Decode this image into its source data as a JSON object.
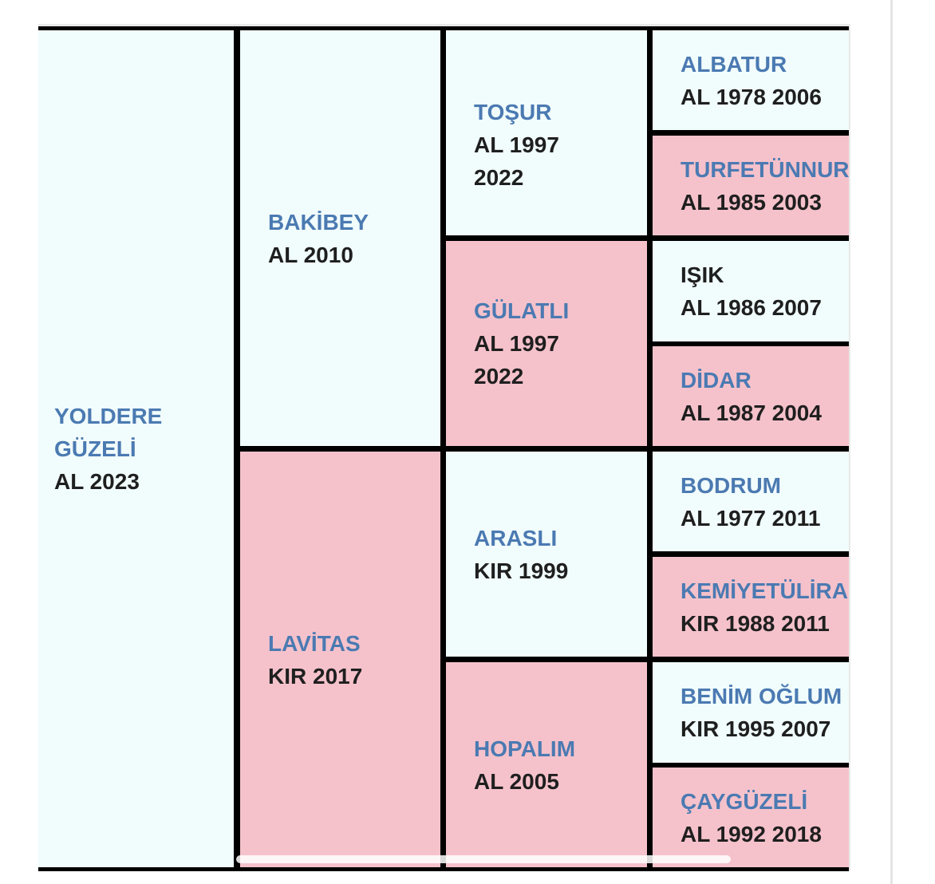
{
  "generation1": {
    "yoldere_guzeli": {
      "name": "YOLDERE GÜZELİ",
      "info": "AL 2023"
    }
  },
  "generation2": {
    "bakibey": {
      "name": "BAKİBEY",
      "info": "AL 2010"
    },
    "lavitas": {
      "name": "LAVİTAS",
      "info": "KIR 2017"
    }
  },
  "generation3": {
    "tosur": {
      "name": "TOŞUR",
      "info": "AL 1997 2022"
    },
    "gulatli": {
      "name": "GÜLATLI",
      "info": "AL 1997 2022"
    },
    "arasli": {
      "name": "ARASLI",
      "info": "KIR 1999"
    },
    "hopalim": {
      "name": "HOPALIM",
      "info": "AL 2005"
    }
  },
  "generation4": {
    "albatur": {
      "name": "ALBATUR",
      "info": "AL 1978 2006"
    },
    "turfetunnur": {
      "name": "TURFETÜNNUR",
      "info": "AL 1985 2003"
    },
    "isik": {
      "name": "IŞIK",
      "info": "AL 1986 2007"
    },
    "didar": {
      "name": "DİDAR",
      "info": "AL 1987 2004"
    },
    "bodrum": {
      "name": "BODRUM",
      "info": "AL 1977 2011"
    },
    "kemiyetulirab": {
      "name": "KEMİYETÜLİRAB",
      "info": "KIR 1988 2011"
    },
    "benim_oglum": {
      "name": "BENİM OĞLUM",
      "info": "KIR 1995 2007"
    },
    "caygüzeli": {
      "name": "ÇAYGÜZELİ",
      "info": "AL 1992 2018"
    }
  }
}
